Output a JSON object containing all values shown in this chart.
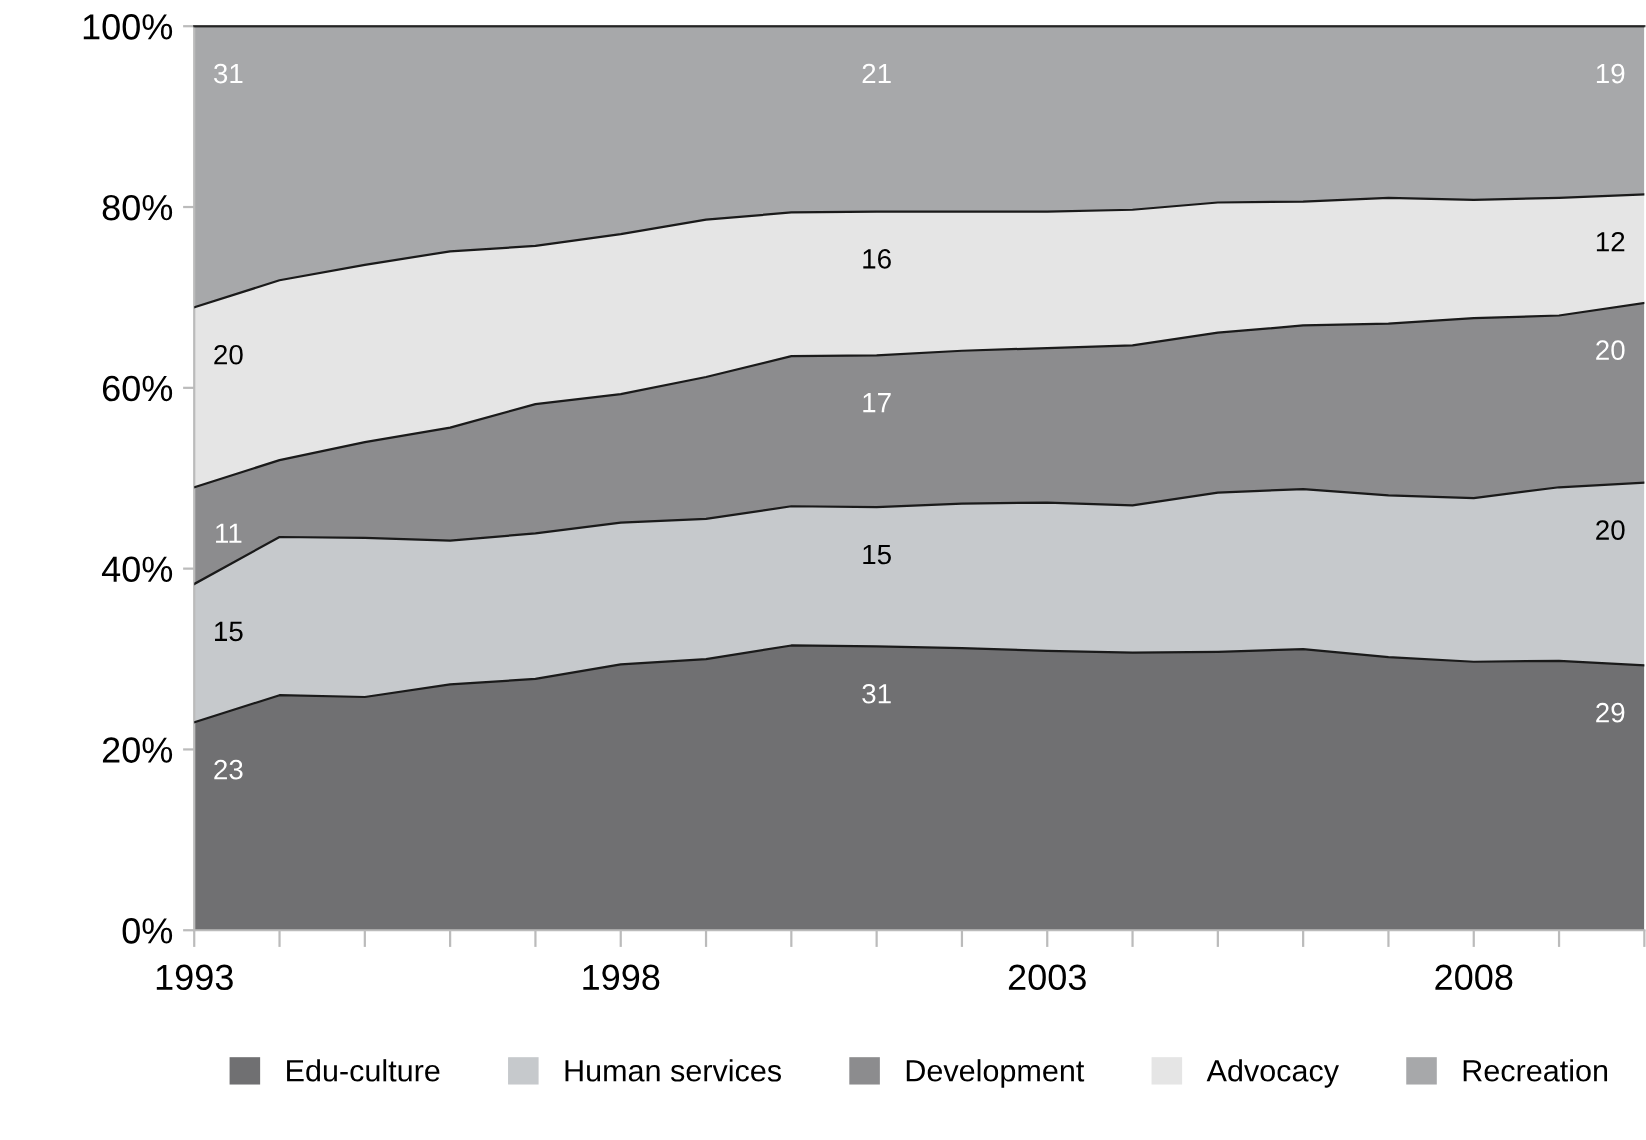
{
  "chart_data": {
    "type": "area",
    "stacked": true,
    "x": [
      1993,
      1994,
      1995,
      1996,
      1997,
      1998,
      1999,
      2000,
      2001,
      2002,
      2003,
      2004,
      2005,
      2006,
      2007,
      2008,
      2009,
      2010
    ],
    "series": [
      {
        "name": "Edu-culture",
        "color": "#707072",
        "values": [
          23.0,
          26.0,
          25.8,
          27.2,
          27.8,
          29.4,
          30.0,
          31.5,
          31.4,
          31.2,
          30.9,
          30.7,
          30.8,
          31.1,
          30.2,
          29.7,
          29.8,
          29.3
        ],
        "value_labels": [
          "23",
          null,
          null,
          null,
          null,
          null,
          null,
          null,
          "31",
          null,
          null,
          null,
          null,
          null,
          null,
          null,
          null,
          "29"
        ]
      },
      {
        "name": "Human services",
        "color": "#c6c9cc",
        "values": [
          15.3,
          17.5,
          17.6,
          15.9,
          16.1,
          15.7,
          15.5,
          15.4,
          15.4,
          16.0,
          16.4,
          16.3,
          17.6,
          17.7,
          17.9,
          18.1,
          19.2,
          20.2
        ],
        "value_labels": [
          "15",
          null,
          null,
          null,
          null,
          null,
          null,
          null,
          "15",
          null,
          null,
          null,
          null,
          null,
          null,
          null,
          null,
          "20"
        ]
      },
      {
        "name": "Development",
        "color": "#8c8c8e",
        "values": [
          10.7,
          8.5,
          10.6,
          12.5,
          14.3,
          14.2,
          15.7,
          16.6,
          16.8,
          16.9,
          17.1,
          17.7,
          17.7,
          18.1,
          19.0,
          19.9,
          19.0,
          19.9
        ],
        "value_labels": [
          "11",
          null,
          null,
          null,
          null,
          null,
          null,
          null,
          "17",
          null,
          null,
          null,
          null,
          null,
          null,
          null,
          null,
          "20"
        ]
      },
      {
        "name": "Advocacy",
        "color": "#e5e5e5",
        "values": [
          19.9,
          19.9,
          19.6,
          19.5,
          17.5,
          17.7,
          17.4,
          15.9,
          15.9,
          15.4,
          15.1,
          15.0,
          14.4,
          13.7,
          13.9,
          13.1,
          13.0,
          12.0
        ],
        "value_labels": [
          "20",
          null,
          null,
          null,
          null,
          null,
          null,
          null,
          "16",
          null,
          null,
          null,
          null,
          null,
          null,
          null,
          null,
          "12"
        ]
      },
      {
        "name": "Recreation",
        "color": "#a7a8aa",
        "values": [
          31.1,
          28.1,
          26.4,
          24.9,
          24.3,
          23.0,
          21.4,
          20.6,
          20.5,
          20.5,
          20.5,
          20.3,
          19.5,
          19.4,
          19.0,
          19.2,
          19.0,
          18.6
        ],
        "value_labels": [
          "31",
          null,
          null,
          null,
          null,
          null,
          null,
          null,
          "21",
          null,
          null,
          null,
          null,
          null,
          null,
          null,
          null,
          "19"
        ]
      }
    ],
    "xlim": [
      1993,
      2010
    ],
    "xticks": [
      1993,
      {
        "value": 1994,
        "label": null
      },
      {
        "value": 1995,
        "label": null
      },
      {
        "value": 1996,
        "label": null
      },
      {
        "value": 1997,
        "label": null
      },
      1998,
      {
        "value": 1999,
        "label": null
      },
      {
        "value": 2000,
        "label": null
      },
      {
        "value": 2001,
        "label": null
      },
      {
        "value": 2002,
        "label": null
      },
      2003,
      {
        "value": 2004,
        "label": null
      },
      {
        "value": 2005,
        "label": null
      },
      {
        "value": 2006,
        "label": null
      },
      {
        "value": 2007,
        "label": null
      },
      2008,
      {
        "value": 2009,
        "label": null
      },
      {
        "value": 2010,
        "label": null
      }
    ],
    "ylim": [
      0,
      100
    ],
    "yticks": [
      {
        "value": 0,
        "label": "0%"
      },
      {
        "value": 20,
        "label": "20%"
      },
      {
        "value": 40,
        "label": "40%"
      },
      {
        "value": 60,
        "label": "60%"
      },
      {
        "value": 80,
        "label": "80%"
      },
      {
        "value": 100,
        "label": "100%"
      }
    ],
    "grid": false,
    "legend": "bottom"
  }
}
